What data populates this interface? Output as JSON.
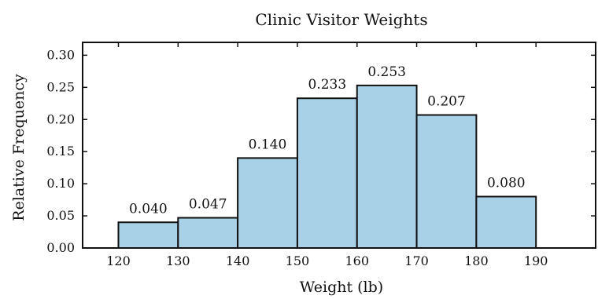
{
  "chart_data": {
    "type": "bar",
    "title": "Clinic Visitor Weights",
    "xlabel": "Weight (lb)",
    "ylabel": "Relative Frequency",
    "bins": [
      {
        "start": 120,
        "end": 130,
        "value": 0.04,
        "label": "0.040"
      },
      {
        "start": 130,
        "end": 140,
        "value": 0.047,
        "label": "0.047"
      },
      {
        "start": 140,
        "end": 150,
        "value": 0.14,
        "label": "0.140"
      },
      {
        "start": 150,
        "end": 160,
        "value": 0.233,
        "label": "0.233"
      },
      {
        "start": 160,
        "end": 170,
        "value": 0.253,
        "label": "0.253"
      },
      {
        "start": 170,
        "end": 180,
        "value": 0.207,
        "label": "0.207"
      },
      {
        "start": 180,
        "end": 190,
        "value": 0.08,
        "label": "0.080"
      }
    ],
    "xlim": [
      114,
      200
    ],
    "ylim": [
      0,
      0.32
    ],
    "xticks": [
      120,
      130,
      140,
      150,
      160,
      170,
      180,
      190
    ],
    "xtick_labels": [
      "120",
      "130",
      "140",
      "150",
      "160",
      "170",
      "180",
      "190"
    ],
    "yticks": [
      0.0,
      0.05,
      0.1,
      0.15,
      0.2,
      0.25,
      0.3
    ],
    "ytick_labels": [
      "0.00",
      "0.05",
      "0.10",
      "0.15",
      "0.20",
      "0.25",
      "0.30"
    ],
    "grid": false,
    "bar_color": "#a8d0e6",
    "edge_color": "#111111"
  }
}
